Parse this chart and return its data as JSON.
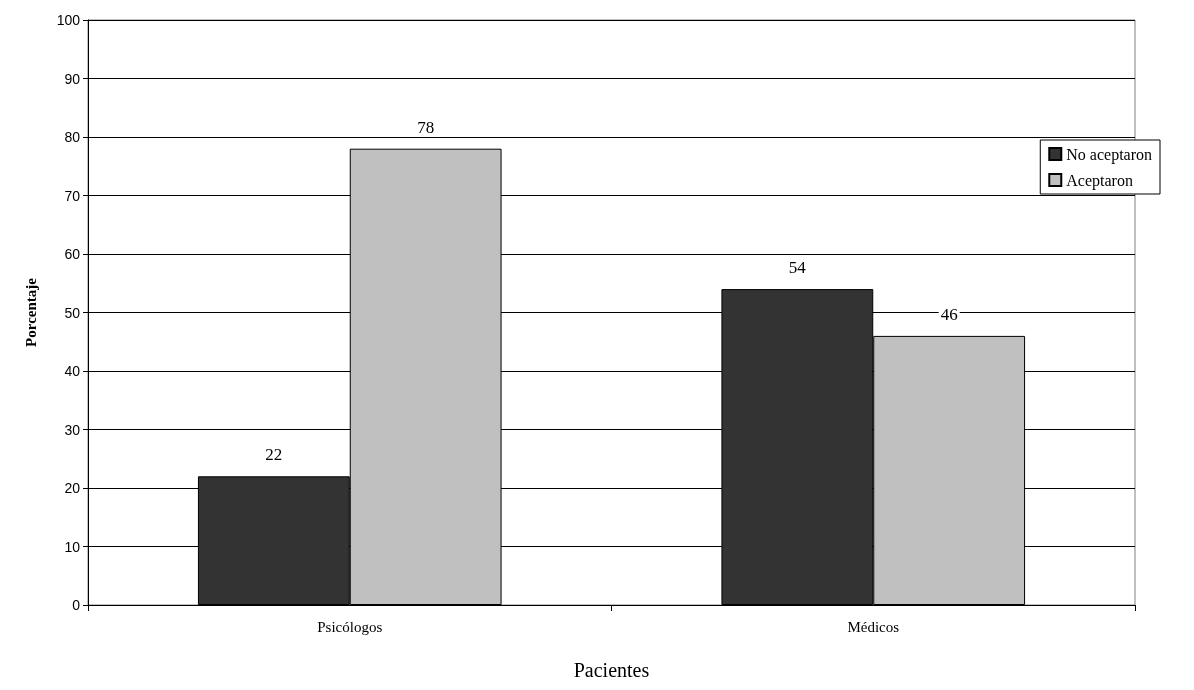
{
  "chart_data": {
    "type": "bar",
    "xlabel": "Pacientes",
    "ylabel": "Porcentaje",
    "categories": [
      "Psicólogos",
      "Médicos"
    ],
    "series": [
      {
        "name": "No aceptaron",
        "color": "#333333",
        "values": [
          22,
          54
        ]
      },
      {
        "name": "Aceptaron",
        "color": "#c0c0c0",
        "values": [
          78,
          46
        ]
      }
    ],
    "ylim": [
      0,
      100
    ],
    "yticks": [
      0,
      10,
      20,
      30,
      40,
      50,
      60,
      70,
      80,
      90,
      100
    ],
    "grid": "y",
    "legend": "right",
    "data_labels": true
  }
}
